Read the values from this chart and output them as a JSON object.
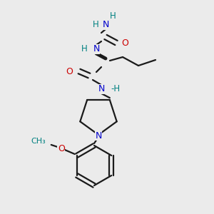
{
  "bg_color": "#ebebeb",
  "bond_color": "#1a1a1a",
  "N_color": "#0000cc",
  "O_color": "#cc0000",
  "H_color": "#008080",
  "figsize": [
    3.0,
    3.0
  ],
  "dpi": 100,
  "xlim": [
    0,
    300
  ],
  "ylim": [
    0,
    300
  ]
}
